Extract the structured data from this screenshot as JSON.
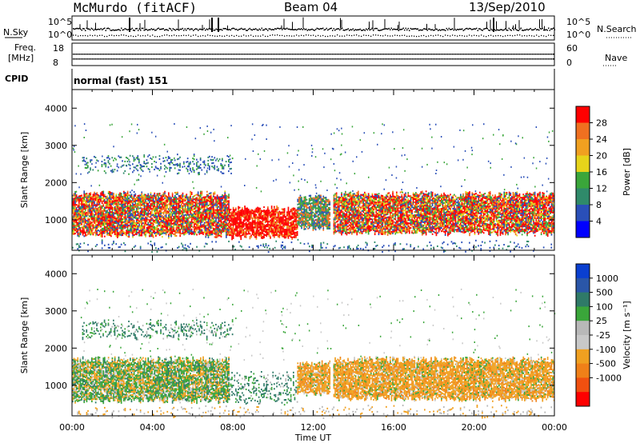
{
  "header": {
    "station": "McMurdo (fitACF)",
    "beam": "Beam 04",
    "date": "13/Sep/2010"
  },
  "params": {
    "nsky_label": "N.Sky",
    "nsearch_label": "N.Search",
    "nsky_ticks": [
      "10^5",
      "10^0"
    ],
    "nsearch_ticks": [
      "10^5",
      "10^0"
    ],
    "freq_label_1": "Freq.",
    "freq_label_2": "[MHz]",
    "freq_ticks": [
      "18",
      "8"
    ],
    "nave_label": "Nave",
    "nave_ticks": [
      "60",
      "0"
    ],
    "cpid_label": "CPID",
    "cpid_value": "normal (fast) 151"
  },
  "colors": {
    "power_scale": [
      "#0000ff",
      "#2a4fb8",
      "#2f8a6a",
      "#3aa63a",
      "#e6d41a",
      "#f0a020",
      "#f07020",
      "#ff0000"
    ],
    "velocity_scale": [
      "#0a3fd0",
      "#2a56a8",
      "#2f7a68",
      "#3aa63a",
      "#b8b8b8",
      "#c8c8c8",
      "#f0a020",
      "#f08018",
      "#f05010",
      "#ff0000"
    ]
  },
  "chart_data": [
    {
      "type": "heatmap",
      "name": "power-panel",
      "xlabel": "",
      "ylabel": "Slant Range [km]",
      "xlim": [
        0,
        24
      ],
      "ylim": [
        180,
        4500
      ],
      "yticks": [
        1000,
        2000,
        3000,
        4000
      ],
      "colorbar": {
        "label": "Power [dB]",
        "ticks": [
          "4",
          "8",
          "12",
          "16",
          "20",
          "24",
          "28"
        ],
        "range": [
          0,
          30
        ]
      },
      "echo_regions": [
        {
          "t0": 0.0,
          "t1": 7.8,
          "r0": 600,
          "r1": 1700,
          "level": "mixed-high"
        },
        {
          "t0": 7.8,
          "t1": 11.2,
          "r0": 550,
          "r1": 1300,
          "level": "high"
        },
        {
          "t0": 11.2,
          "t1": 12.8,
          "r0": 800,
          "r1": 1600,
          "level": "mixed"
        },
        {
          "t0": 13.0,
          "t1": 24.0,
          "r0": 650,
          "r1": 1700,
          "level": "mixed-high"
        },
        {
          "t0": 0.5,
          "t1": 8.0,
          "r0": 2300,
          "r1": 2700,
          "level": "low"
        },
        {
          "t0": 0.0,
          "t1": 24.0,
          "r0": 200,
          "r1": 400,
          "level": "sparse-low"
        }
      ]
    },
    {
      "type": "heatmap",
      "name": "velocity-panel",
      "xlabel": "Time UT",
      "ylabel": "Slant Range [km]",
      "xlim": [
        0,
        24
      ],
      "ylim": [
        180,
        4500
      ],
      "xticks": [
        "00:00",
        "04:00",
        "08:00",
        "12:00",
        "16:00",
        "20:00",
        "00:00"
      ],
      "yticks": [
        1000,
        2000,
        3000,
        4000
      ],
      "colorbar": {
        "label": "Velocity [m s⁻¹]",
        "ticks": [
          "1000",
          "500",
          "100",
          "25",
          "-25",
          "-100",
          "-500",
          "-1000"
        ],
        "range": [
          -1200,
          1200
        ]
      },
      "echo_regions": [
        {
          "t0": 0.0,
          "t1": 7.8,
          "r0": 600,
          "r1": 1700,
          "level": "green-orange"
        },
        {
          "t0": 7.8,
          "t1": 11.2,
          "r0": 550,
          "r1": 1300,
          "level": "green"
        },
        {
          "t0": 11.2,
          "t1": 12.8,
          "r0": 800,
          "r1": 1600,
          "level": "orange"
        },
        {
          "t0": 13.0,
          "t1": 24.0,
          "r0": 650,
          "r1": 1700,
          "level": "orange"
        },
        {
          "t0": 0.5,
          "t1": 8.0,
          "r0": 2300,
          "r1": 2700,
          "level": "green"
        },
        {
          "t0": 0.0,
          "t1": 24.0,
          "r0": 200,
          "r1": 400,
          "level": "sparse"
        }
      ]
    }
  ]
}
